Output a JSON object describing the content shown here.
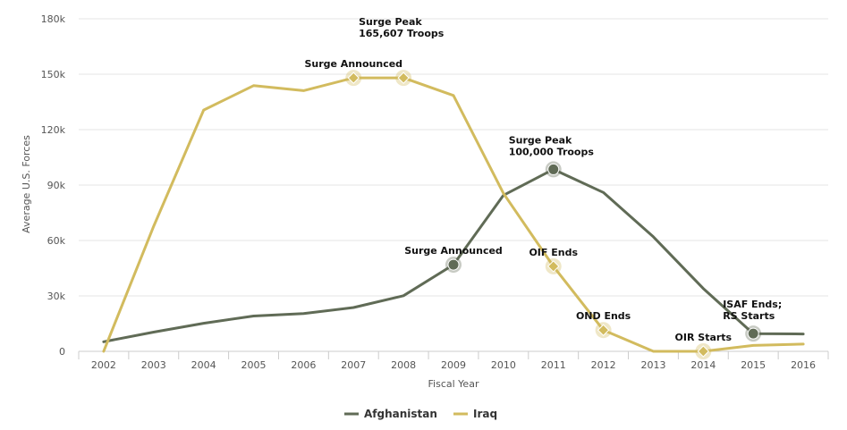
{
  "chart_data": {
    "type": "line",
    "xlabel": "Fiscal Year",
    "ylabel": "Average U.S. Forces",
    "x": [
      "2002",
      "2003",
      "2004",
      "2005",
      "2006",
      "2007",
      "2008",
      "2009",
      "2010",
      "2011",
      "2012",
      "2013",
      "2014",
      "2015",
      "2016"
    ],
    "y_ticks": [
      {
        "value": 0,
        "label": "0"
      },
      {
        "value": 30000,
        "label": "30k"
      },
      {
        "value": 60000,
        "label": "60k"
      },
      {
        "value": 90000,
        "label": "90k"
      },
      {
        "value": 120000,
        "label": "120k"
      },
      {
        "value": 150000,
        "label": "150k"
      },
      {
        "value": 180000,
        "label": "180k"
      }
    ],
    "ylim": [
      0,
      180000
    ],
    "grid": true,
    "legend_position": "bottom-center",
    "series": [
      {
        "name": "Afghanistan",
        "color": "#606b56",
        "values": [
          5200,
          10400,
          15200,
          19100,
          20400,
          23700,
          30100,
          46900,
          84500,
          98500,
          86000,
          62000,
          34000,
          9600,
          9400
        ],
        "markers": [
          {
            "index": 7,
            "label": "Surge Announced"
          },
          {
            "index": 9,
            "label_lines": [
              "Surge Peak",
              "100,000 Troops"
            ]
          },
          {
            "index": 13,
            "label_lines": [
              "ISAF Ends;",
              "RS Starts"
            ]
          }
        ]
      },
      {
        "name": "Iraq",
        "color": "#d2bb5e",
        "values": [
          0,
          67700,
          130600,
          143800,
          141100,
          148000,
          148000,
          138500,
          85500,
          46000,
          11500,
          0,
          0,
          3200,
          3900
        ],
        "markers": [
          {
            "index": 5,
            "label": "Surge Announced"
          },
          {
            "index": 6,
            "label_lines": [
              "Surge Peak",
              "165,607 Troops"
            ]
          },
          {
            "index": 9,
            "label": "OIF Ends"
          },
          {
            "index": 10,
            "label": "OND Ends"
          },
          {
            "index": 12,
            "label": "OIR Starts"
          }
        ]
      }
    ]
  }
}
